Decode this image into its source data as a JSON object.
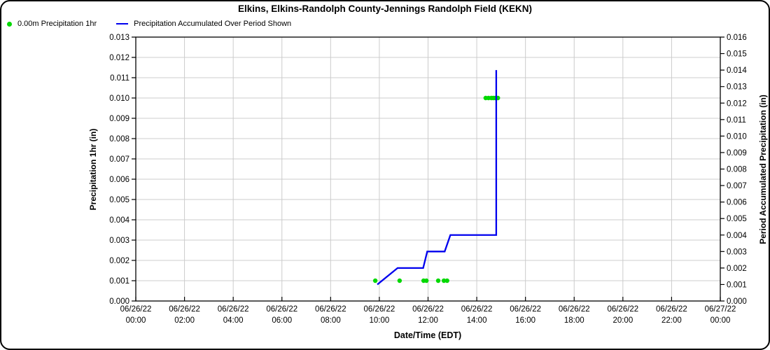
{
  "title": "Elkins, Elkins-Randolph County-Jennings Randolph Field (KEKN)",
  "legend": {
    "series1": "0.00m Precipitation 1hr",
    "series2": "Precipitation Accumulated Over Period Shown"
  },
  "colors": {
    "dots": "#00d800",
    "line": "#0000ee",
    "grid": "#cccccc",
    "axis": "#000000",
    "background": "#ffffff"
  },
  "chart_data": {
    "type": "line",
    "title": "Elkins, Elkins-Randolph County-Jennings Randolph Field (KEKN)",
    "xlabel": "Date/Time (EDT)",
    "ylabel_left": "Precipitation 1hr (in)",
    "ylabel_right": "Period Accumulated Precipitation (in)",
    "grid": true,
    "legend_position": "top-left",
    "x_axis": {
      "start": "06/26/22 00:00",
      "end": "06/27/22 00:00",
      "span_hours": 24,
      "tick_interval_hours": 2,
      "ticks": [
        {
          "date": "06/26/22",
          "time": "00:00"
        },
        {
          "date": "06/26/22",
          "time": "02:00"
        },
        {
          "date": "06/26/22",
          "time": "04:00"
        },
        {
          "date": "06/26/22",
          "time": "06:00"
        },
        {
          "date": "06/26/22",
          "time": "08:00"
        },
        {
          "date": "06/26/22",
          "time": "10:00"
        },
        {
          "date": "06/26/22",
          "time": "12:00"
        },
        {
          "date": "06/26/22",
          "time": "14:00"
        },
        {
          "date": "06/26/22",
          "time": "16:00"
        },
        {
          "date": "06/26/22",
          "time": "18:00"
        },
        {
          "date": "06/26/22",
          "time": "20:00"
        },
        {
          "date": "06/26/22",
          "time": "22:00"
        },
        {
          "date": "06/27/22",
          "time": "00:00"
        }
      ]
    },
    "y_left": {
      "min": 0.0,
      "max": 0.013,
      "tick_step": 0.001,
      "tick_labels": [
        "0.000",
        "0.001",
        "0.002",
        "0.003",
        "0.004",
        "0.005",
        "0.006",
        "0.007",
        "0.008",
        "0.009",
        "0.010",
        "0.011",
        "0.012",
        "0.013"
      ]
    },
    "y_right": {
      "min": 0.0,
      "max": 0.016,
      "tick_step": 0.001,
      "tick_labels": [
        "0.000",
        "0.001",
        "0.002",
        "0.003",
        "0.004",
        "0.005",
        "0.006",
        "0.007",
        "0.008",
        "0.009",
        "0.010",
        "0.011",
        "0.012",
        "0.013",
        "0.014",
        "0.015",
        "0.016"
      ]
    },
    "series": [
      {
        "name": "0.00m Precipitation 1hr",
        "type": "scatter",
        "axis": "left",
        "color": "#00d800",
        "points": [
          {
            "time": "06/26/22 09:50",
            "hours": 9.833,
            "value": 0.001
          },
          {
            "time": "06/26/22 10:50",
            "hours": 10.833,
            "value": 0.001
          },
          {
            "time": "06/26/22 11:49",
            "hours": 11.817,
            "value": 0.001
          },
          {
            "time": "06/26/22 11:56",
            "hours": 11.933,
            "value": 0.001
          },
          {
            "time": "06/26/22 12:25",
            "hours": 12.417,
            "value": 0.001
          },
          {
            "time": "06/26/22 12:39",
            "hours": 12.65,
            "value": 0.001
          },
          {
            "time": "06/26/22 12:47",
            "hours": 12.783,
            "value": 0.001
          },
          {
            "time": "06/26/22 14:22",
            "hours": 14.367,
            "value": 0.01
          },
          {
            "time": "06/26/22 14:29",
            "hours": 14.483,
            "value": 0.01
          },
          {
            "time": "06/26/22 14:36",
            "hours": 14.6,
            "value": 0.01
          },
          {
            "time": "06/26/22 14:41",
            "hours": 14.683,
            "value": 0.01
          },
          {
            "time": "06/26/22 14:46",
            "hours": 14.767,
            "value": 0.01
          },
          {
            "time": "06/26/22 14:52",
            "hours": 14.867,
            "value": 0.01
          }
        ]
      },
      {
        "name": "Precipitation Accumulated Over Period Shown",
        "type": "line",
        "axis": "right",
        "color": "#0000ee",
        "points": [
          {
            "time": "06/26/22 09:55",
            "hours": 9.917,
            "value": 0.001
          },
          {
            "time": "06/26/22 10:45",
            "hours": 10.75,
            "value": 0.002
          },
          {
            "time": "06/26/22 11:48",
            "hours": 11.8,
            "value": 0.002
          },
          {
            "time": "06/26/22 11:58",
            "hours": 11.967,
            "value": 0.003
          },
          {
            "time": "06/26/22 12:41",
            "hours": 12.683,
            "value": 0.003
          },
          {
            "time": "06/26/22 12:55",
            "hours": 12.917,
            "value": 0.004
          },
          {
            "time": "06/26/22 14:48",
            "hours": 14.8,
            "value": 0.004
          },
          {
            "time": "06/26/22 14:48",
            "hours": 14.8,
            "value": 0.014
          }
        ]
      }
    ]
  }
}
